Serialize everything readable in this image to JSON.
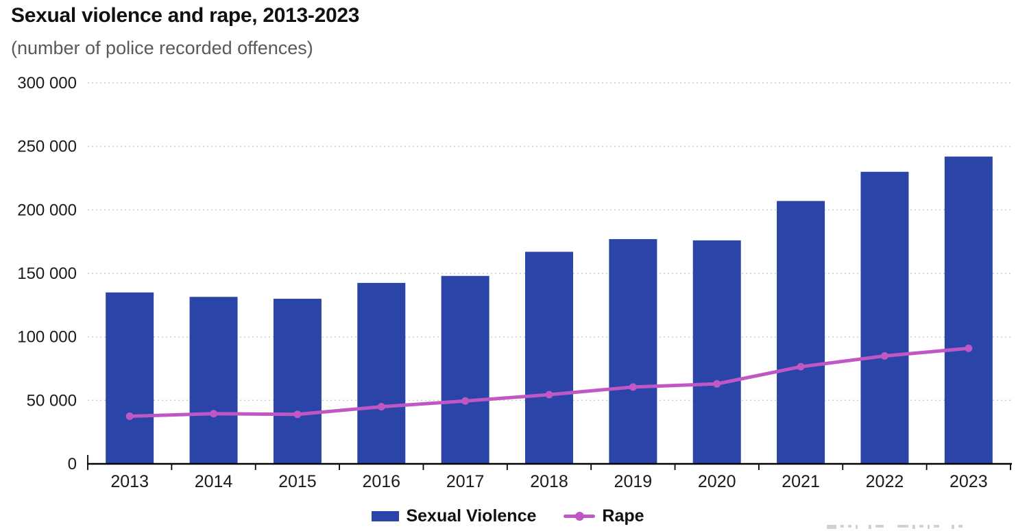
{
  "chart": {
    "title": "Sexual violence and rape, 2013-2023",
    "subtitle": "(number of police recorded offences)"
  },
  "chart_data": {
    "type": "bar+line",
    "title": "Sexual violence and rape, 2013-2023",
    "subtitle": "(number of police recorded offences)",
    "categories": [
      "2013",
      "2014",
      "2015",
      "2016",
      "2017",
      "2018",
      "2019",
      "2020",
      "2021",
      "2022",
      "2023"
    ],
    "series": [
      {
        "name": "Sexual Violence",
        "type": "bar",
        "color": "#2a44a7",
        "values": [
          135000,
          131500,
          130000,
          142500,
          148000,
          167000,
          177000,
          176000,
          207000,
          230000,
          242000
        ]
      },
      {
        "name": "Rape",
        "type": "line",
        "color": "#bf58c4",
        "values": [
          37500,
          39500,
          39000,
          45000,
          49500,
          54500,
          60500,
          63000,
          76500,
          85000,
          91000
        ]
      }
    ],
    "y_axis": {
      "min": 0,
      "max": 300000,
      "tick_interval": 50000,
      "tick_labels": [
        "0",
        "50 000",
        "100 000",
        "150 000",
        "200 000",
        "250 000",
        "300 000"
      ]
    },
    "x_axis": {
      "label": ""
    },
    "grid": "horizontal dotted",
    "legend_position": "bottom center"
  }
}
